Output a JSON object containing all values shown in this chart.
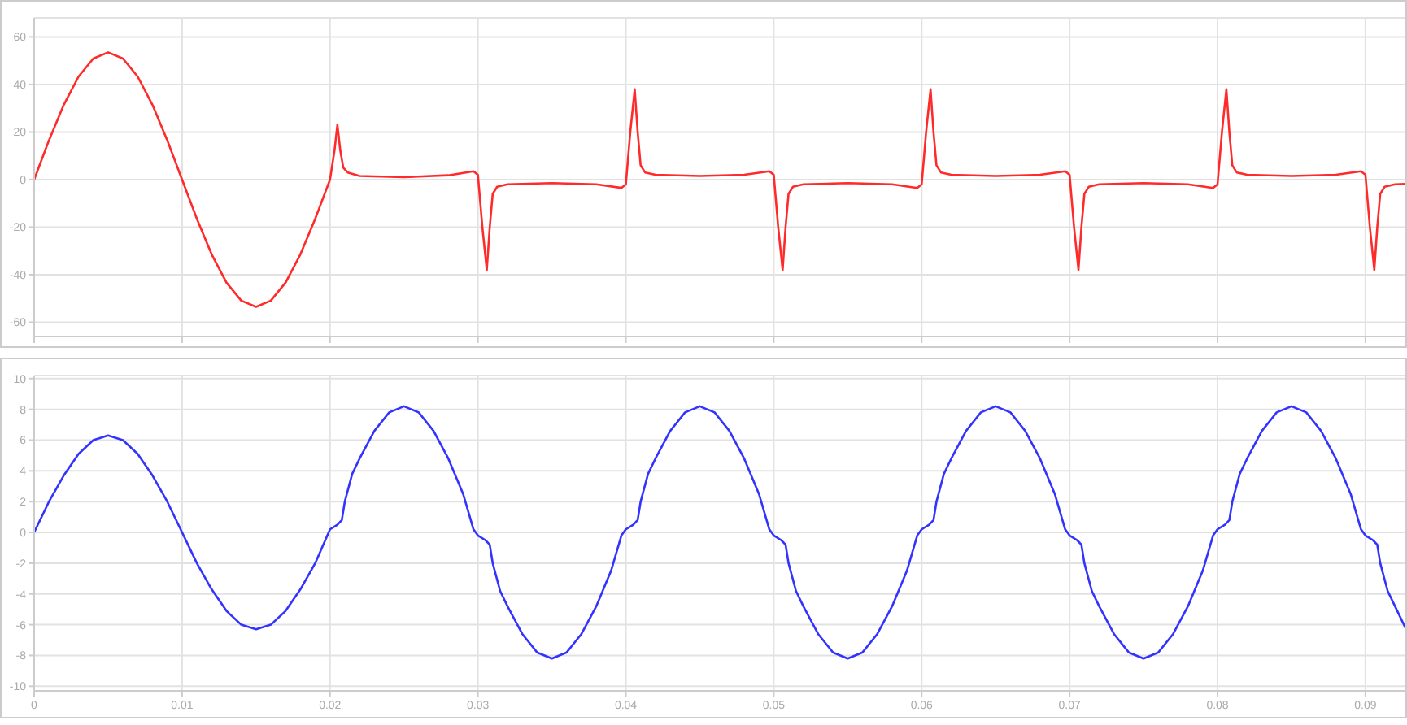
{
  "chart_data": [
    {
      "type": "line",
      "xlim": [
        0,
        0.0927
      ],
      "xticks": [
        0,
        0.01,
        0.02,
        0.03,
        0.04,
        0.05,
        0.06,
        0.07,
        0.08,
        0.09
      ],
      "ylim": [
        -66,
        68
      ],
      "yticks": [
        -60,
        -40,
        -20,
        0,
        20,
        40,
        60
      ],
      "grid": true,
      "tick_labels": "y",
      "marker": "none",
      "line_style": "solid",
      "series": [
        {
          "color": "#ff2a2a",
          "x": [
            0,
            0.001,
            0.002,
            0.003,
            0.004,
            0.005,
            0.006,
            0.007,
            0.008,
            0.009,
            0.01,
            0.011,
            0.012,
            0.013,
            0.014,
            0.015,
            0.016,
            0.017,
            0.018,
            0.019,
            0.02,
            0.0203,
            0.0205,
            0.0207,
            0.0209,
            0.0212,
            0.022,
            0.025,
            0.028,
            0.0297,
            0.03,
            0.0303,
            0.0306,
            0.0308,
            0.031,
            0.0313,
            0.032,
            0.035,
            0.038,
            0.0397,
            0.04,
            0.0403,
            0.0406,
            0.0408,
            0.041,
            0.0413,
            0.042,
            0.045,
            0.048,
            0.0497,
            0.05,
            0.0503,
            0.0506,
            0.0508,
            0.051,
            0.0513,
            0.052,
            0.055,
            0.058,
            0.0597,
            0.06,
            0.0603,
            0.0606,
            0.0608,
            0.061,
            0.0613,
            0.062,
            0.065,
            0.068,
            0.0697,
            0.07,
            0.0703,
            0.0706,
            0.0708,
            0.071,
            0.0713,
            0.072,
            0.075,
            0.078,
            0.0797,
            0.08,
            0.0803,
            0.0806,
            0.0808,
            0.081,
            0.0813,
            0.082,
            0.085,
            0.088,
            0.0897,
            0.09,
            0.0903,
            0.0906,
            0.0908,
            0.091,
            0.0913,
            0.092,
            0.0927
          ],
          "values": [
            0,
            16.5,
            31.4,
            43.3,
            50.9,
            53.5,
            50.9,
            43.3,
            31.4,
            16.5,
            0,
            -16.5,
            -31.4,
            -43.3,
            -50.9,
            -53.5,
            -50.9,
            -43.3,
            -31.4,
            -16.5,
            0,
            12,
            23,
            12,
            5,
            3,
            1.5,
            1,
            1.8,
            3.5,
            2,
            -20,
            -38,
            -20,
            -6,
            -3,
            -2,
            -1.5,
            -2,
            -3.5,
            -2,
            20,
            38,
            20,
            6,
            3,
            2,
            1.5,
            2,
            3.5,
            2,
            -20,
            -38,
            -20,
            -6,
            -3,
            -2,
            -1.5,
            -2,
            -3.5,
            -2,
            20,
            38,
            20,
            6,
            3,
            2,
            1.5,
            2,
            3.5,
            2,
            -20,
            -38,
            -20,
            -6,
            -3,
            -2,
            -1.5,
            -2,
            -3.5,
            -2,
            20,
            38,
            20,
            6,
            3,
            2,
            1.5,
            2,
            3.5,
            2,
            -20,
            -38,
            -20,
            -6,
            -3,
            -2,
            -1.8
          ]
        }
      ]
    },
    {
      "type": "line",
      "xlim": [
        0,
        0.0927
      ],
      "xticks": [
        0,
        0.01,
        0.02,
        0.03,
        0.04,
        0.05,
        0.06,
        0.07,
        0.08,
        0.09
      ],
      "ylim": [
        -10.3,
        10.2
      ],
      "yticks": [
        -10,
        -8,
        -6,
        -4,
        -2,
        0,
        2,
        4,
        6,
        8,
        10
      ],
      "grid": true,
      "marker": "none",
      "line_style": "solid",
      "series": [
        {
          "color": "#3333ff",
          "x": [
            0,
            0.001,
            0.002,
            0.003,
            0.004,
            0.005,
            0.006,
            0.007,
            0.008,
            0.009,
            0.01,
            0.011,
            0.012,
            0.013,
            0.014,
            0.015,
            0.016,
            0.017,
            0.018,
            0.019,
            0.02,
            0.0205,
            0.0208,
            0.021,
            0.0215,
            0.022,
            0.023,
            0.024,
            0.025,
            0.026,
            0.027,
            0.028,
            0.029,
            0.0297,
            0.03,
            0.0305,
            0.0308,
            0.031,
            0.0315,
            0.032,
            0.033,
            0.034,
            0.035,
            0.036,
            0.037,
            0.038,
            0.039,
            0.0397,
            0.04,
            0.0405,
            0.0408,
            0.041,
            0.0415,
            0.042,
            0.043,
            0.044,
            0.045,
            0.046,
            0.047,
            0.048,
            0.049,
            0.0497,
            0.05,
            0.0505,
            0.0508,
            0.051,
            0.0515,
            0.052,
            0.053,
            0.054,
            0.055,
            0.056,
            0.057,
            0.058,
            0.059,
            0.0597,
            0.06,
            0.0605,
            0.0608,
            0.061,
            0.0615,
            0.062,
            0.063,
            0.064,
            0.065,
            0.066,
            0.067,
            0.068,
            0.069,
            0.0697,
            0.07,
            0.0705,
            0.0708,
            0.071,
            0.0715,
            0.072,
            0.073,
            0.074,
            0.075,
            0.076,
            0.077,
            0.078,
            0.079,
            0.0797,
            0.08,
            0.0805,
            0.0808,
            0.081,
            0.0815,
            0.082,
            0.083,
            0.084,
            0.085,
            0.086,
            0.087,
            0.088,
            0.089,
            0.0897,
            0.09,
            0.0905,
            0.0908,
            0.091,
            0.0915,
            0.092,
            0.0927
          ],
          "values": [
            0,
            2,
            3.7,
            5.1,
            6,
            6.3,
            6,
            5.1,
            3.7,
            2,
            0,
            -2,
            -3.7,
            -5.1,
            -6,
            -6.3,
            -6,
            -5.1,
            -3.7,
            -2,
            0.2,
            0.5,
            0.8,
            2,
            3.8,
            4.8,
            6.6,
            7.8,
            8.2,
            7.8,
            6.6,
            4.8,
            2.5,
            0.2,
            -0.2,
            -0.5,
            -0.8,
            -2,
            -3.8,
            -4.8,
            -6.6,
            -7.8,
            -8.2,
            -7.8,
            -6.6,
            -4.8,
            -2.5,
            -0.2,
            0.2,
            0.5,
            0.8,
            2,
            3.8,
            4.8,
            6.6,
            7.8,
            8.2,
            7.8,
            6.6,
            4.8,
            2.5,
            0.2,
            -0.2,
            -0.5,
            -0.8,
            -2,
            -3.8,
            -4.8,
            -6.6,
            -7.8,
            -8.2,
            -7.8,
            -6.6,
            -4.8,
            -2.5,
            -0.2,
            0.2,
            0.5,
            0.8,
            2,
            3.8,
            4.8,
            6.6,
            7.8,
            8.2,
            7.8,
            6.6,
            4.8,
            2.5,
            0.2,
            -0.2,
            -0.5,
            -0.8,
            -2,
            -3.8,
            -4.8,
            -6.6,
            -7.8,
            -8.2,
            -7.8,
            -6.6,
            -4.8,
            -2.5,
            -0.2,
            0.2,
            0.5,
            0.8,
            2,
            3.8,
            4.8,
            6.6,
            7.8,
            8.2,
            7.8,
            6.6,
            4.8,
            2.5,
            0.2,
            -0.2,
            -0.5,
            -0.8,
            -2,
            -3.8,
            -4.8,
            -6.2
          ]
        }
      ]
    }
  ]
}
